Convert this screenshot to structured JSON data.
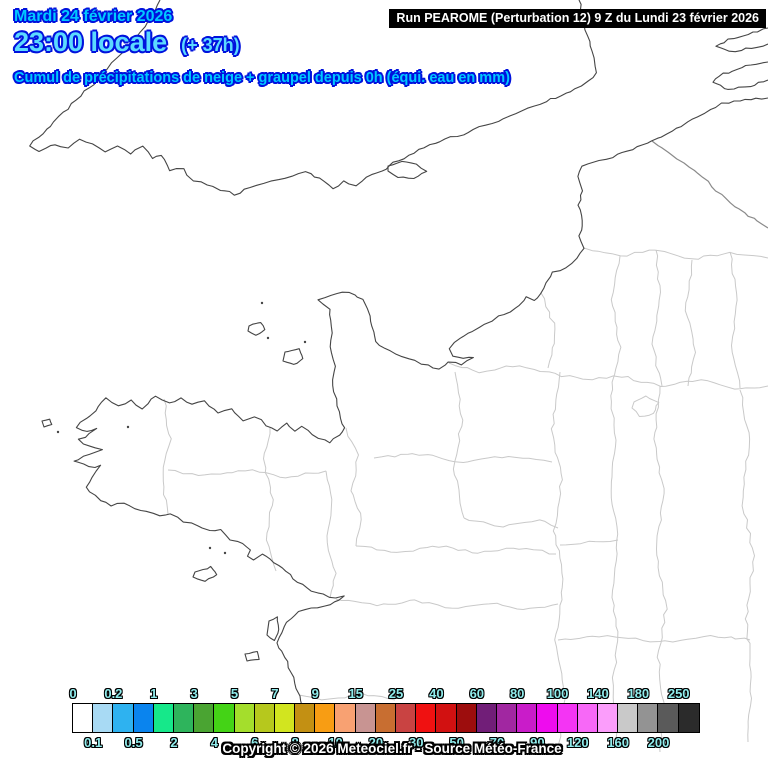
{
  "header": {
    "date_line": "Mardi 24 février 2026",
    "time_line": "23:00 locale",
    "offset_label": "(+ 37h)",
    "subtitle": "Cumul de précipitations de neige + graupel depuis 0h (équi. eau en mm)",
    "text_color": "#00c8ff",
    "outline_color": "#0012dd"
  },
  "run_banner": {
    "text": "Run PEAROME (Perturbation 12) 9 Z du Lundi 23 février 2026",
    "background": "#000000",
    "text_color": "#ffffff"
  },
  "map": {
    "coastline_color": "#454545",
    "department_border_color": "#c9c9c9",
    "country_border_color": "#8a8a8a",
    "sea_and_land_color": "#ffffff"
  },
  "legend": {
    "label_color": "#90ecec",
    "boundaries": [
      "0",
      "0.1",
      "0.2",
      "0.5",
      "1",
      "2",
      "3",
      "4",
      "5",
      "6",
      "7",
      "8",
      "9",
      "10",
      "15",
      "20",
      "25",
      "30",
      "40",
      "50",
      "60",
      "70",
      "80",
      "90",
      "100",
      "120",
      "140",
      "160",
      "180",
      "200",
      "250"
    ],
    "cells": [
      "#ffffff",
      "#a8daf4",
      "#2eb2f0",
      "#0a84ee",
      "#16e88a",
      "#2eb45c",
      "#4aa432",
      "#44d316",
      "#a4de2c",
      "#b6c81d",
      "#d2e51f",
      "#c39013",
      "#f89d13",
      "#f8a172",
      "#c89492",
      "#c86e31",
      "#c94342",
      "#f01111",
      "#d21111",
      "#9d0d0d",
      "#711e78",
      "#a127a1",
      "#c91cc9",
      "#ee0cee",
      "#f434f4",
      "#f768f7",
      "#fb9dfb",
      "#c9c9c9",
      "#939393",
      "#5a5a5a",
      "#2b2b2b"
    ],
    "top_labels": [
      {
        "text": "0",
        "index": 0
      },
      {
        "text": "0.2",
        "index": 2
      },
      {
        "text": "1",
        "index": 4
      },
      {
        "text": "3",
        "index": 6
      },
      {
        "text": "5",
        "index": 8
      },
      {
        "text": "7",
        "index": 10
      },
      {
        "text": "9",
        "index": 12
      },
      {
        "text": "15",
        "index": 14
      },
      {
        "text": "25",
        "index": 16
      },
      {
        "text": "40",
        "index": 18
      },
      {
        "text": "60",
        "index": 20
      },
      {
        "text": "80",
        "index": 22
      },
      {
        "text": "100",
        "index": 24
      },
      {
        "text": "140",
        "index": 26
      },
      {
        "text": "180",
        "index": 28
      },
      {
        "text": "250",
        "index": 30
      }
    ],
    "bottom_labels": [
      {
        "text": "0.1",
        "index": 1
      },
      {
        "text": "0.5",
        "index": 3
      },
      {
        "text": "2",
        "index": 5
      },
      {
        "text": "4",
        "index": 7
      },
      {
        "text": "6",
        "index": 9
      },
      {
        "text": "8",
        "index": 11
      },
      {
        "text": "10",
        "index": 13
      },
      {
        "text": "20",
        "index": 15
      },
      {
        "text": "30",
        "index": 17
      },
      {
        "text": "50",
        "index": 19
      },
      {
        "text": "70",
        "index": 21
      },
      {
        "text": "90",
        "index": 23
      },
      {
        "text": "120",
        "index": 25
      },
      {
        "text": "160",
        "index": 27
      },
      {
        "text": "200",
        "index": 29
      }
    ]
  },
  "footer": {
    "copyright": "Copyright © 2026 Meteociel.fr - Source Météo-France"
  }
}
